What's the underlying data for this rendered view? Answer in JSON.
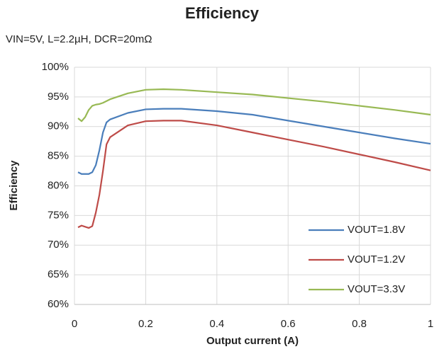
{
  "chart_data": {
    "type": "line",
    "title": "Efficiency",
    "subtitle": "VIN=5V, L=2.2µH, DCR=20mΩ",
    "x_label": "Output current (A)",
    "y_label": "Efficiency",
    "x": [
      0.01,
      0.02,
      0.03,
      0.04,
      0.05,
      0.06,
      0.07,
      0.08,
      0.09,
      0.1,
      0.15,
      0.2,
      0.25,
      0.3,
      0.4,
      0.5,
      0.6,
      0.7,
      0.8,
      0.9,
      1.0
    ],
    "series": [
      {
        "name": "VOUT=1.8V",
        "color": "#4a7ebb",
        "values": [
          82.3,
          82.0,
          82.0,
          82.0,
          82.3,
          83.5,
          86,
          89,
          90.7,
          91.2,
          92.3,
          92.9,
          93.0,
          93.0,
          92.6,
          92.0,
          91.0,
          90.0,
          89.0,
          88.0,
          87.1
        ]
      },
      {
        "name": "VOUT=1.2V",
        "color": "#be4b48",
        "values": [
          73.0,
          73.3,
          73.1,
          72.9,
          73.2,
          75.5,
          78.5,
          82.5,
          87.0,
          88.2,
          90.2,
          90.9,
          91.0,
          91.0,
          90.2,
          89.0,
          87.8,
          86.6,
          85.3,
          84.0,
          82.6
        ]
      },
      {
        "name": "VOUT=3.3V",
        "color": "#98b954",
        "values": [
          91.4,
          90.9,
          91.6,
          92.8,
          93.5,
          93.7,
          93.8,
          94.0,
          94.3,
          94.6,
          95.6,
          96.2,
          96.3,
          96.2,
          95.8,
          95.4,
          94.8,
          94.2,
          93.5,
          92.8,
          92.0
        ]
      }
    ],
    "xlim": [
      0,
      1
    ],
    "xticks": [
      0,
      0.2,
      0.4,
      0.6,
      0.8,
      1
    ],
    "ylim": [
      60,
      100
    ],
    "yticks": [
      {
        "value": 60,
        "label": "60%"
      },
      {
        "value": 65,
        "label": "65%"
      },
      {
        "value": 70,
        "label": "70%"
      },
      {
        "value": 75,
        "label": "75%"
      },
      {
        "value": 80,
        "label": "80%"
      },
      {
        "value": 85,
        "label": "85%"
      },
      {
        "value": 90,
        "label": "90%"
      },
      {
        "value": 95,
        "label": "95%"
      },
      {
        "value": 100,
        "label": "100%"
      }
    ],
    "grid": true,
    "legend": "right"
  }
}
